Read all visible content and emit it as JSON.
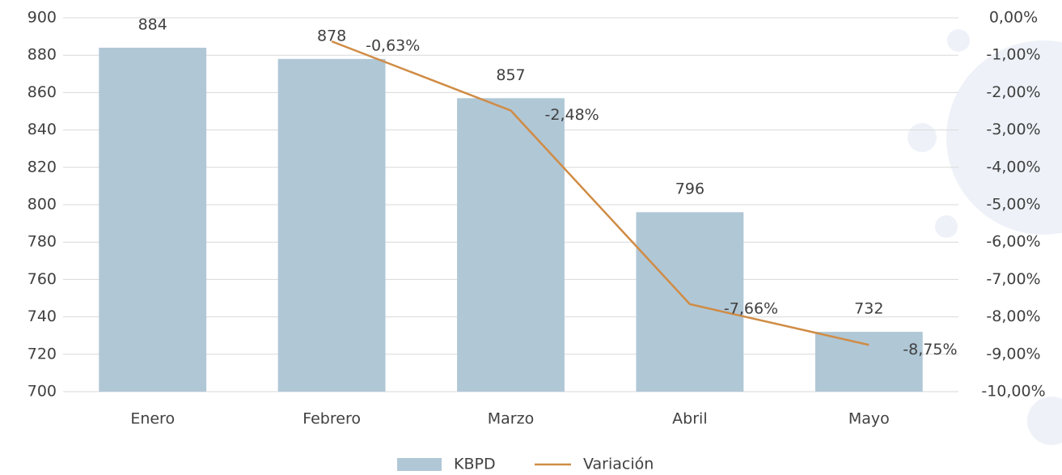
{
  "chart_data": {
    "type": "bar-line",
    "categories": [
      "Enero",
      "Febrero",
      "Marzo",
      "Abril",
      "Mayo"
    ],
    "series": [
      {
        "name": "KBPD",
        "type": "bar",
        "color": "#b0c7d6",
        "values": [
          884,
          878,
          857,
          796,
          732
        ]
      },
      {
        "name": "Variación",
        "type": "line",
        "axis": "y2",
        "color": "#d08c45",
        "values": [
          null,
          -0.63,
          -2.48,
          -7.66,
          -8.75
        ],
        "value_labels": [
          null,
          "-0,63%",
          "-2,48%",
          "-7,66%",
          "-8,75%"
        ]
      }
    ],
    "ylim": [
      700,
      900
    ],
    "yticks": [
      700,
      720,
      740,
      760,
      780,
      800,
      820,
      840,
      860,
      880,
      900
    ],
    "y2lim": [
      -10,
      0
    ],
    "y2ticks": [
      {
        "value": 0,
        "label": "0,00%"
      },
      {
        "value": -1,
        "label": "-1,00%"
      },
      {
        "value": -2,
        "label": "-2,00%"
      },
      {
        "value": -3,
        "label": "-3,00%"
      },
      {
        "value": -4,
        "label": "-4,00%"
      },
      {
        "value": -5,
        "label": "-5,00%"
      },
      {
        "value": -6,
        "label": "-6,00%"
      },
      {
        "value": -7,
        "label": "-7,00%"
      },
      {
        "value": -8,
        "label": "-8,00%"
      },
      {
        "value": -9,
        "label": "-9,00%"
      },
      {
        "value": -10,
        "label": "-10,00%"
      }
    ],
    "grid": true,
    "legend": "bottom"
  }
}
